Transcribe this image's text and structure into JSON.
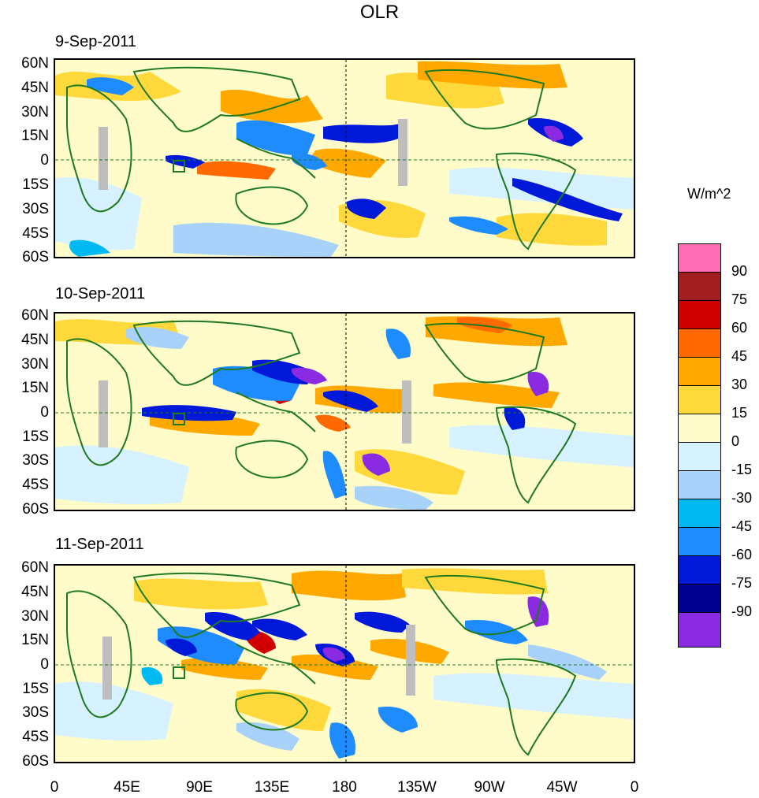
{
  "title": "OLR",
  "panels": [
    {
      "date": "9-Sep-2011"
    },
    {
      "date": "10-Sep-2011"
    },
    {
      "date": "11-Sep-2011"
    }
  ],
  "lat_labels": [
    "60N",
    "45N",
    "30N",
    "15N",
    "0",
    "15S",
    "30S",
    "45S",
    "60S"
  ],
  "lon_labels": [
    "0",
    "45E",
    "90E",
    "135E",
    "180",
    "135W",
    "90W",
    "45W",
    "0"
  ],
  "colorbar": {
    "units": "W/m^2",
    "colors": [
      "#ff6eb4",
      "#a11e1e",
      "#d10000",
      "#ff6a00",
      "#ffa800",
      "#ffd93b",
      "#fffcca",
      "#d6f1ff",
      "#a8d2fa",
      "#00b9f2",
      "#1e8cff",
      "#0019d9",
      "#00008f",
      "#8a2be2"
    ],
    "labels": [
      "90",
      "75",
      "60",
      "45",
      "30",
      "15",
      "0",
      "-15",
      "-30",
      "-45",
      "-60",
      "-75",
      "-90"
    ]
  },
  "colors": {
    "coast": "#1f7a1f",
    "missing": "#bebebe"
  }
}
